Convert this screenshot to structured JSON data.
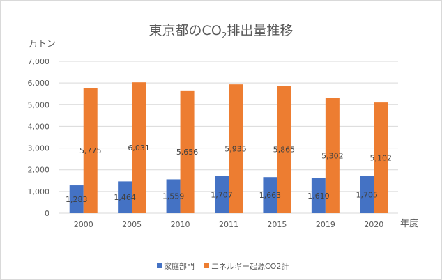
{
  "chart_data": {
    "type": "bar",
    "title_prefix": "東京都のCO",
    "title_sub": "2",
    "title_suffix": "排出量推移",
    "ylabel": "万トン",
    "xlabel": "年度",
    "ylim": [
      0,
      7000
    ],
    "yticks": [
      0,
      1000,
      2000,
      3000,
      4000,
      5000,
      6000,
      7000
    ],
    "ytick_labels": [
      "0",
      "1,000",
      "2,000",
      "3,000",
      "4,000",
      "5,000",
      "6,000",
      "7,000"
    ],
    "grid": true,
    "legend_position": "bottom",
    "categories": [
      "2000",
      "2005",
      "2010",
      "2011",
      "2015",
      "2019",
      "2020"
    ],
    "series": [
      {
        "name": "家庭部門",
        "color": "#4472c4",
        "values": [
          1283,
          1464,
          1559,
          1707,
          1663,
          1610,
          1705
        ],
        "labels": [
          "1,283",
          "1,464",
          "1,559",
          "1,707",
          "1,663",
          "1,610",
          "1,705"
        ]
      },
      {
        "name": "エネルギー起源CO2計",
        "color": "#ed7d31",
        "values": [
          5775,
          6031,
          5656,
          5935,
          5865,
          5302,
          5102
        ],
        "labels": [
          "5,775",
          "6,031",
          "5,656",
          "5,935",
          "5,865",
          "5,302",
          "5,102"
        ]
      }
    ]
  }
}
